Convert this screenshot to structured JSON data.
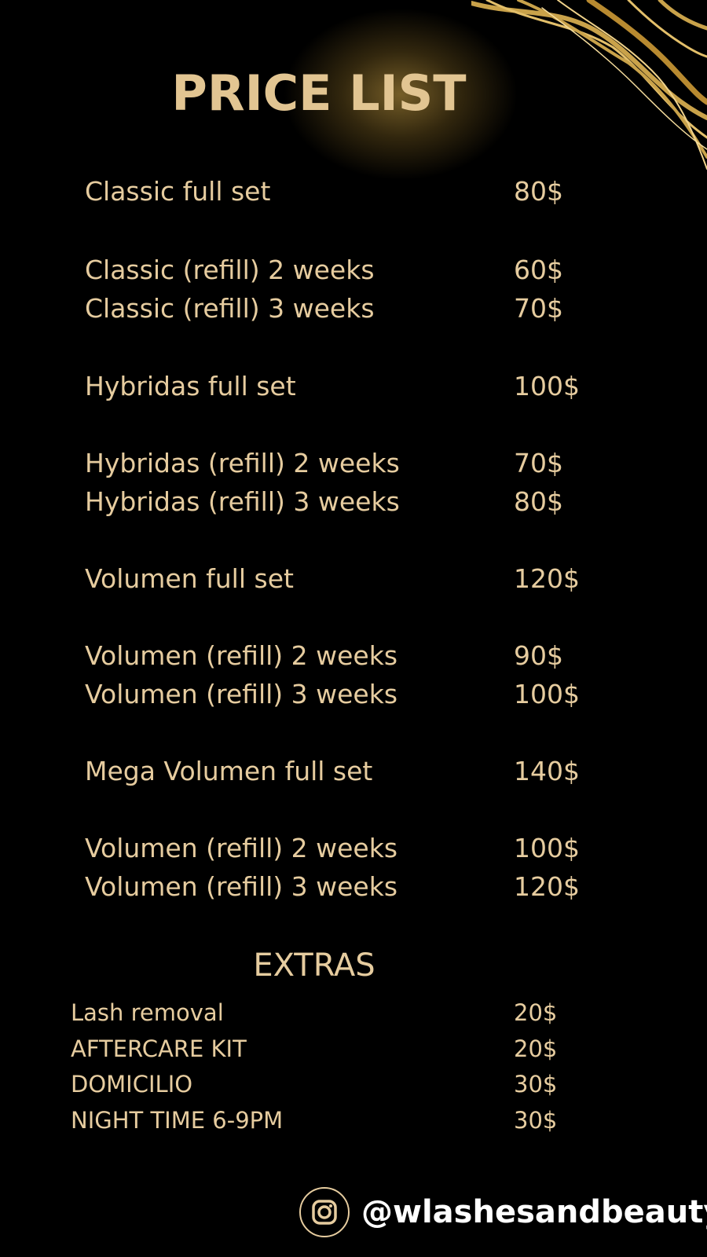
{
  "title": "PRICE LIST",
  "services": [
    {
      "name": "Classic full set",
      "price": "80$"
    },
    {
      "name": "Classic (refill) 2 weeks",
      "price": "60$"
    },
    {
      "name": "Classic (refill) 3 weeks",
      "price": "70$"
    },
    {
      "name": "Hybridas full set",
      "price": "100$"
    },
    {
      "name": "Hybridas (refill) 2 weeks",
      "price": "70$"
    },
    {
      "name": "Hybridas (refill) 3 weeks",
      "price": "80$"
    },
    {
      "name": "Volumen full set",
      "price": "120$"
    },
    {
      "name": "Volumen (refill) 2 weeks",
      "price": "90$"
    },
    {
      "name": "Volumen (refill) 3 weeks",
      "price": "100$"
    },
    {
      "name": "Mega Volumen full set",
      "price": "140$"
    },
    {
      "name": "Volumen (refill) 2 weeks",
      "price": "100$"
    },
    {
      "name": "Volumen (refill) 3 weeks",
      "price": "120$"
    }
  ],
  "extras": {
    "title": "EXTRAS",
    "items": [
      {
        "name": "Lash removal",
        "price": "20$"
      },
      {
        "name": "AFTERCARE KIT",
        "price": "20$"
      },
      {
        "name": "DOMICILIO",
        "price": "30$"
      },
      {
        "name": "NIGHT TIME 6-9PM",
        "price": "30$"
      }
    ]
  },
  "footer": {
    "icon": "instagram-icon",
    "handle": "@wlashesandbeauty"
  },
  "colors": {
    "background": "#000000",
    "gold_text": "#e6cc9f",
    "title_gold": "#e2c592",
    "handle": "#ffffff"
  }
}
